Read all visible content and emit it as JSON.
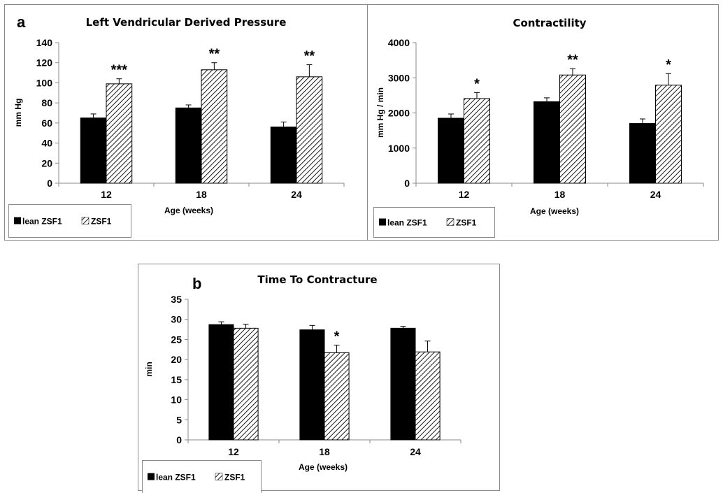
{
  "figure": {
    "legend": {
      "series_a": "lean ZSF1",
      "series_b": "ZSF1"
    }
  },
  "chart_data": [
    {
      "id": "pressure",
      "type": "bar",
      "panel_letter": "a",
      "title": "Left Vendricular Derived Pressure",
      "xlabel": "Age  (weeks)",
      "ylabel": "mm Hg",
      "ylim": [
        0,
        140
      ],
      "yticks": [
        0,
        20,
        40,
        60,
        80,
        100,
        120,
        140
      ],
      "categories": [
        "12",
        "18",
        "24"
      ],
      "series": [
        {
          "name": "lean ZSF1",
          "fill": "solid",
          "values": [
            65,
            75,
            56
          ],
          "errors": [
            4,
            3,
            5
          ]
        },
        {
          "name": "ZSF1",
          "fill": "hatched",
          "values": [
            99,
            113,
            106
          ],
          "errors": [
            5,
            7,
            12
          ]
        }
      ],
      "annotations": [
        "***",
        "**",
        "**"
      ]
    },
    {
      "id": "contractility",
      "type": "bar",
      "panel_letter": "",
      "title": "Contractility",
      "xlabel": "Age  (weeks)",
      "ylabel": "mm Hg / min",
      "ylim": [
        0,
        4000
      ],
      "yticks": [
        0,
        1000,
        2000,
        3000,
        4000
      ],
      "categories": [
        "12",
        "18",
        "24"
      ],
      "series": [
        {
          "name": "lean ZSF1",
          "fill": "solid",
          "values": [
            1850,
            2320,
            1700
          ],
          "errors": [
            120,
            110,
            130
          ]
        },
        {
          "name": "ZSF1",
          "fill": "hatched",
          "values": [
            2410,
            3080,
            2790
          ],
          "errors": [
            170,
            180,
            330
          ]
        }
      ],
      "annotations": [
        "*",
        "**",
        "*"
      ]
    },
    {
      "id": "contracture",
      "type": "bar",
      "panel_letter": "b",
      "title": "Time To Contracture",
      "xlabel": "Age  (weeks)",
      "ylabel": "min",
      "ylim": [
        0,
        35
      ],
      "yticks": [
        0,
        5,
        10,
        15,
        20,
        25,
        30,
        35
      ],
      "categories": [
        "12",
        "18",
        "24"
      ],
      "series": [
        {
          "name": "lean ZSF1",
          "fill": "solid",
          "values": [
            28.7,
            27.4,
            27.8
          ],
          "errors": [
            0.7,
            1.1,
            0.5
          ]
        },
        {
          "name": "ZSF1",
          "fill": "hatched",
          "values": [
            27.8,
            21.7,
            21.9
          ],
          "errors": [
            1.0,
            1.9,
            2.7
          ]
        }
      ],
      "annotations": [
        "",
        "*",
        ""
      ]
    }
  ]
}
